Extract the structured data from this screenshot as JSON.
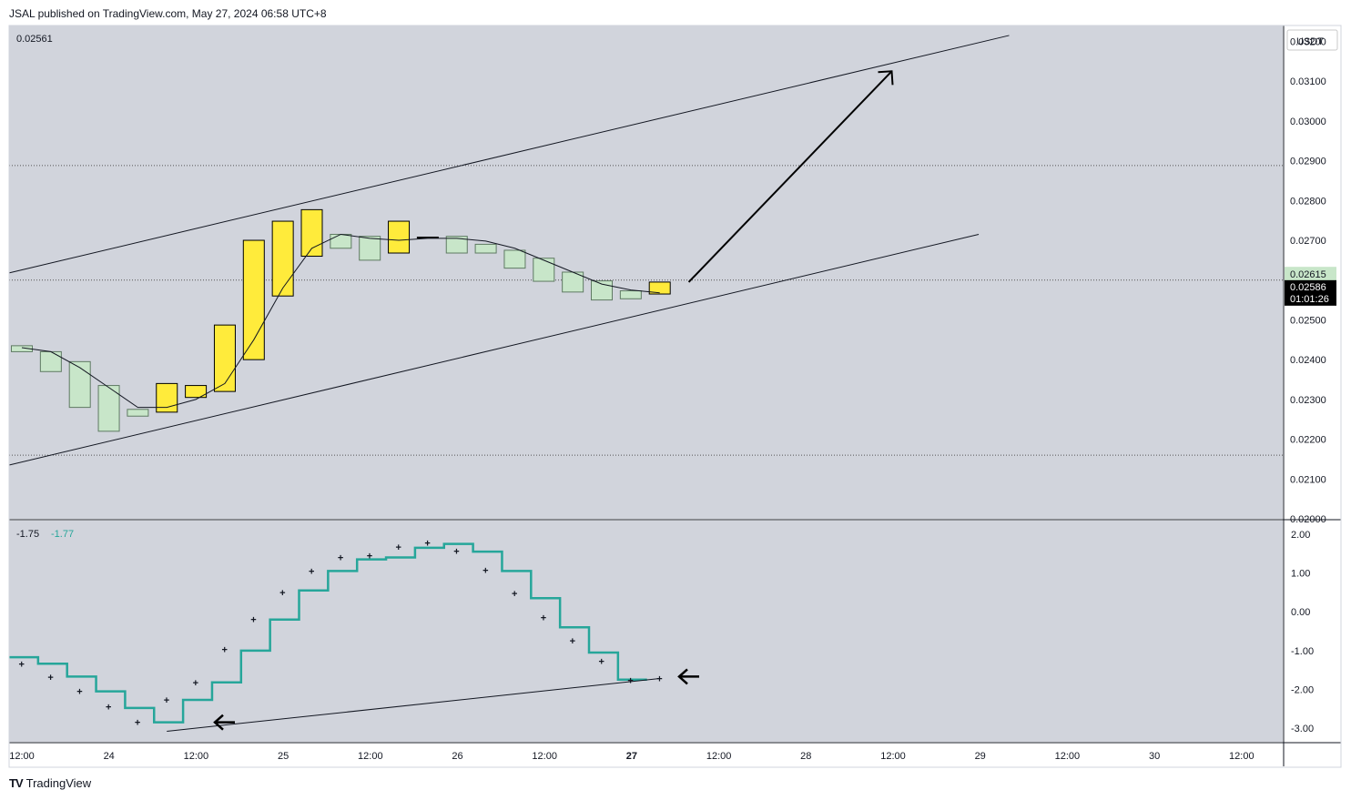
{
  "header": {
    "text": "JSAL published on TradingView.com, May 27, 2024 06:58 UTC+8"
  },
  "footer": {
    "brand": "TradingView",
    "logo": "TV"
  },
  "colors": {
    "bg": "#d1d4dc",
    "up": "#ffeb3b",
    "down": "#c8e6c9",
    "line": "#131722",
    "indicator": "#26a69a"
  },
  "chart_data": [
    {
      "type": "candlestick",
      "title": "0.02561",
      "currency": "USDT",
      "ylim": [
        0.02,
        0.0324
      ],
      "y_ticks": [
        "0.03200",
        "0.03100",
        "0.03000",
        "0.02900",
        "0.02800",
        "0.02700",
        "0.02500",
        "0.02400",
        "0.02300",
        "0.02200",
        "0.02100",
        "0.02000"
      ],
      "price_labels": {
        "last": "0.02615",
        "current": "0.02586",
        "countdown": "01:01:26"
      },
      "candles": [
        {
          "o": 0.02435,
          "c": 0.0242
        },
        {
          "o": 0.0242,
          "c": 0.0237
        },
        {
          "o": 0.02395,
          "c": 0.0228
        },
        {
          "o": 0.02335,
          "c": 0.0222
        },
        {
          "o": 0.02275,
          "c": 0.02258
        },
        {
          "o": 0.02268,
          "c": 0.0234
        },
        {
          "o": 0.02305,
          "c": 0.02335
        },
        {
          "o": 0.0232,
          "c": 0.02487
        },
        {
          "o": 0.024,
          "c": 0.027
        },
        {
          "o": 0.0256,
          "c": 0.02748
        },
        {
          "o": 0.0266,
          "c": 0.02777
        },
        {
          "o": 0.02715,
          "c": 0.0268
        },
        {
          "o": 0.0271,
          "c": 0.0265
        },
        {
          "o": 0.02668,
          "c": 0.02748
        },
        {
          "o": 0.02708,
          "c": 0.02708
        },
        {
          "o": 0.0271,
          "c": 0.02668
        },
        {
          "o": 0.0269,
          "c": 0.02668
        },
        {
          "o": 0.02675,
          "c": 0.0263
        },
        {
          "o": 0.02655,
          "c": 0.02597
        },
        {
          "o": 0.0262,
          "c": 0.0257
        },
        {
          "o": 0.02598,
          "c": 0.0255
        },
        {
          "o": 0.02573,
          "c": 0.02553
        },
        {
          "o": 0.02565,
          "c": 0.02595
        }
      ],
      "ma": [
        0.0243,
        0.0242,
        0.0238,
        0.0233,
        0.0228,
        0.0228,
        0.023,
        0.0234,
        0.0245,
        0.0258,
        0.0268,
        0.02715,
        0.02705,
        0.027,
        0.02705,
        0.02705,
        0.02698,
        0.0268,
        0.0265,
        0.0262,
        0.0259,
        0.02575,
        0.02568
      ],
      "hlines": [
        0.02888,
        0.026,
        0.0216
      ]
    },
    {
      "type": "step-line",
      "values_label": [
        "-1.75",
        "-1.77"
      ],
      "ylim": [
        -3.35,
        2.35
      ],
      "y_ticks": [
        "2.00",
        "1.00",
        "0.00",
        "-1.00",
        "-2.00",
        "-3.00"
      ],
      "line": [
        -1.17,
        -1.34,
        -1.67,
        -2.05,
        -2.48,
        -2.85,
        -2.27,
        -1.82,
        -1.0,
        -0.2,
        0.55,
        1.05,
        1.35,
        1.4,
        1.65,
        1.75,
        1.55,
        1.05,
        0.35,
        -0.4,
        -1.05,
        -1.75
      ],
      "dots": [
        -1.35,
        -1.68,
        -2.05,
        -2.45,
        -2.85,
        -2.27,
        -1.82,
        -0.97,
        -0.2,
        0.5,
        1.05,
        1.4,
        1.45,
        1.67,
        1.77,
        1.57,
        1.07,
        0.47,
        -0.15,
        -0.75,
        -1.27,
        -1.77,
        -1.72
      ]
    }
  ],
  "x_axis": [
    "12:00",
    "24",
    "12:00",
    "25",
    "12:00",
    "26",
    "12:00",
    "27",
    "12:00",
    "28",
    "12:00",
    "29",
    "12:00",
    "30",
    "12:00"
  ]
}
